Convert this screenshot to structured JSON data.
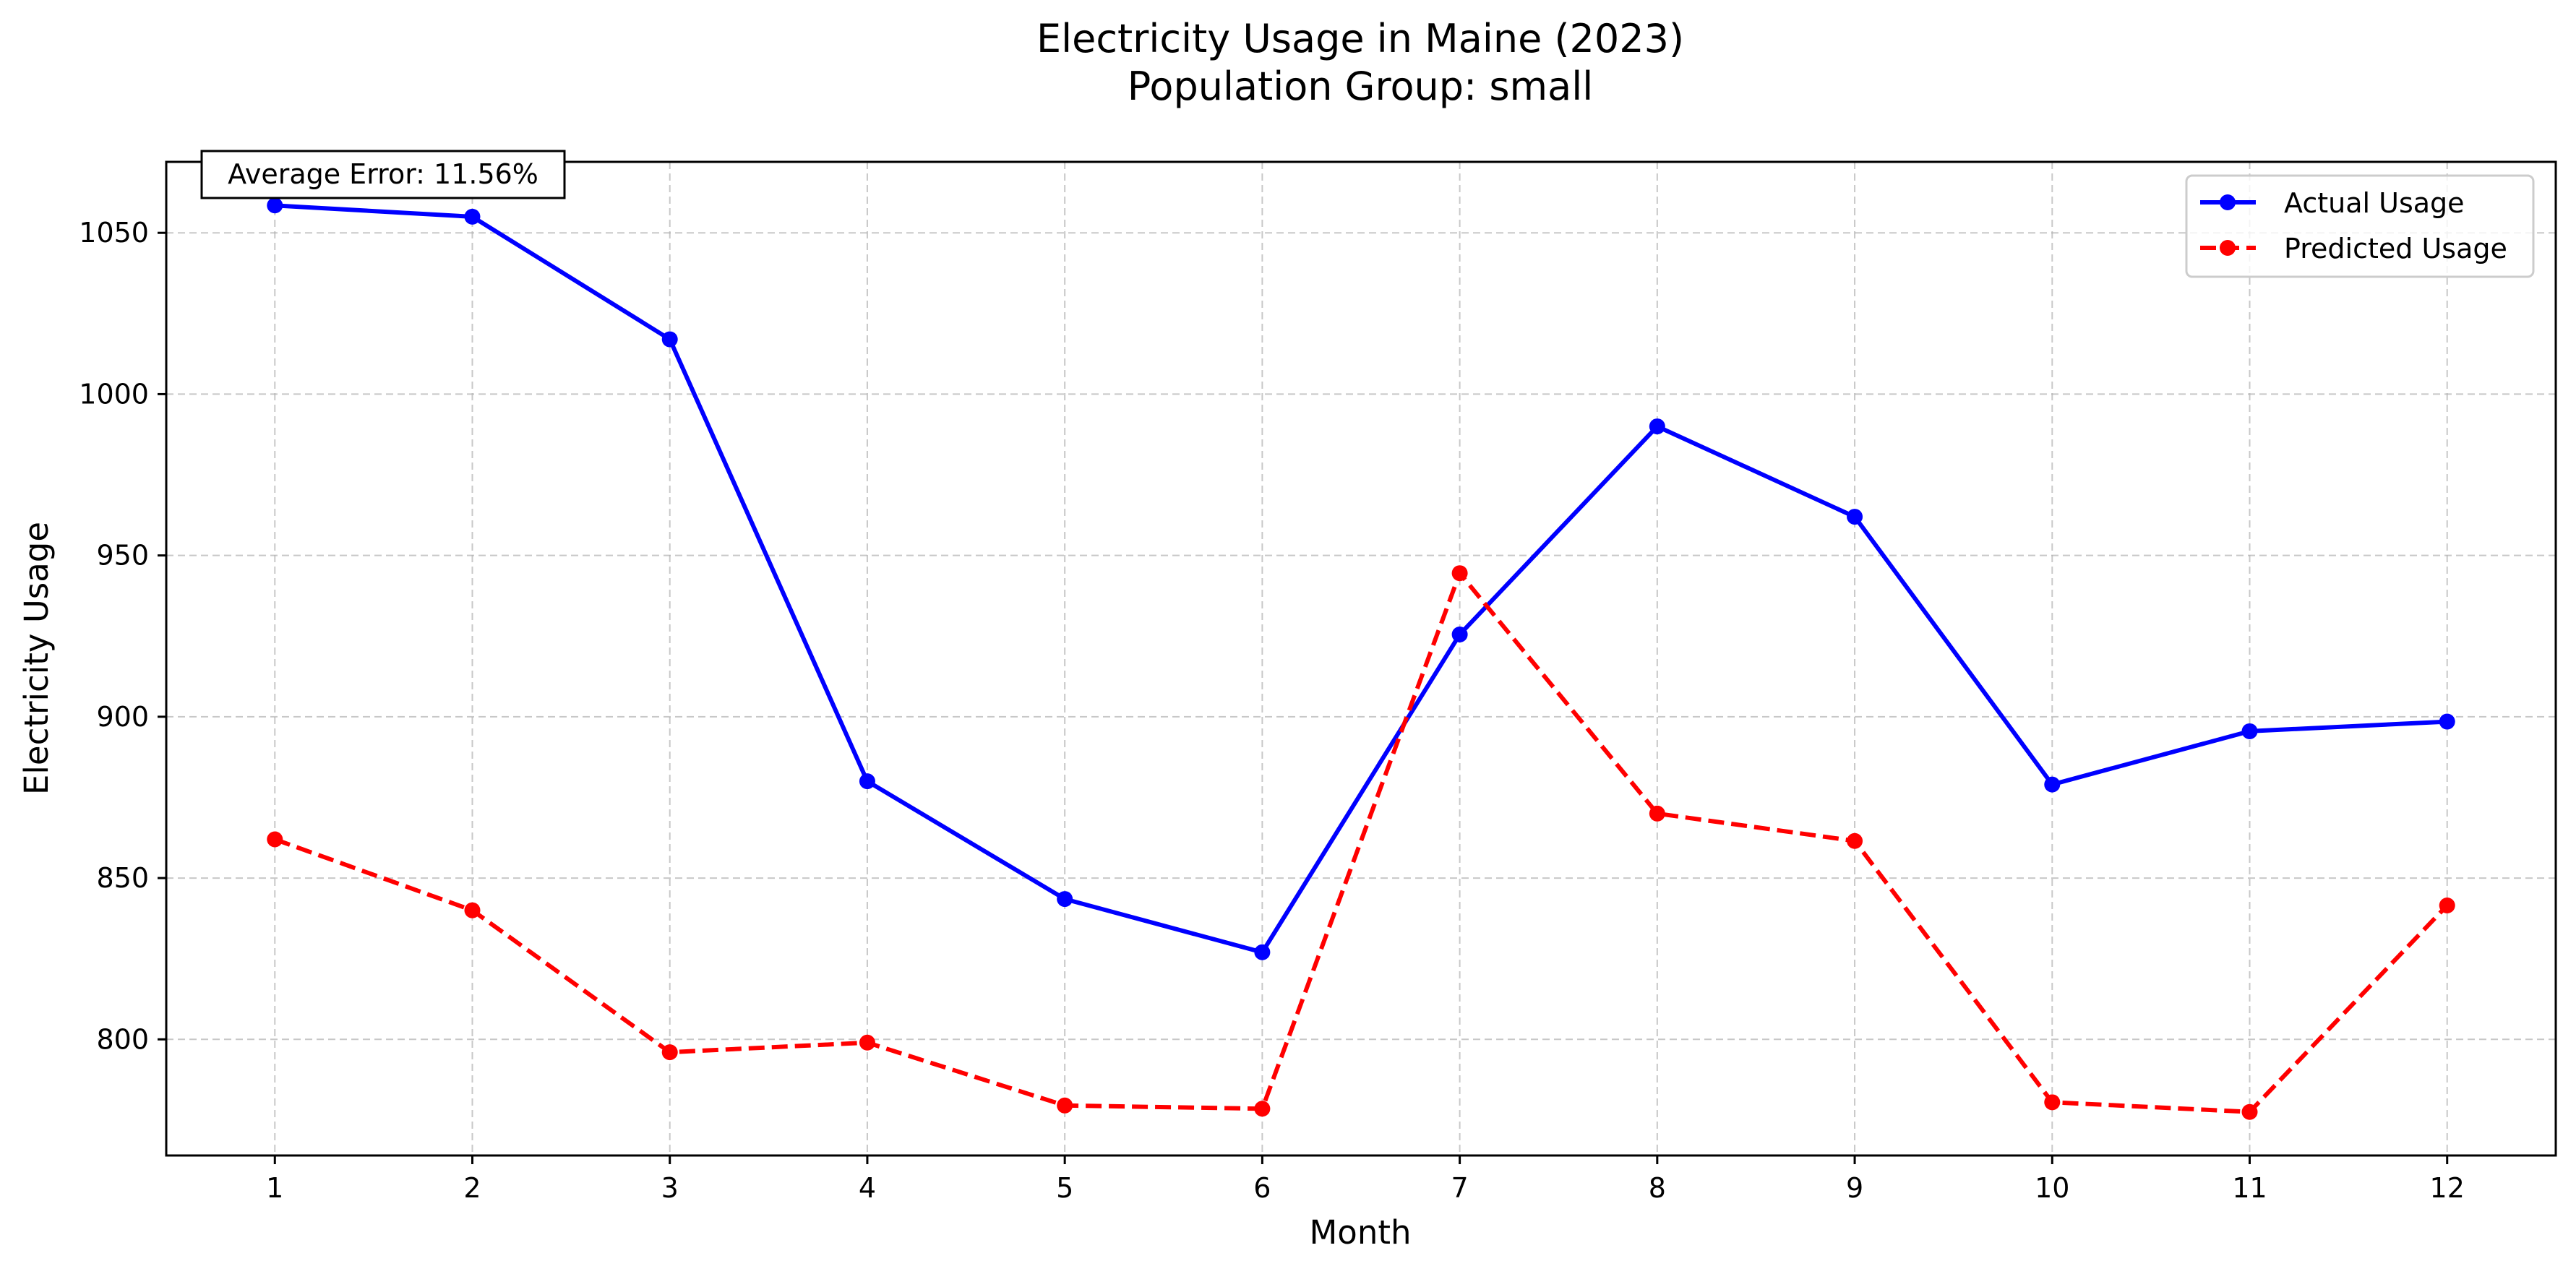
{
  "chart_data": {
    "type": "line",
    "title": "Electricity Usage in Maine (2023)",
    "subtitle": "Population Group: small",
    "xlabel": "Month",
    "ylabel": "Electricity Usage",
    "x": [
      1,
      2,
      3,
      4,
      5,
      6,
      7,
      8,
      9,
      10,
      11,
      12
    ],
    "xlim": [
      0.45,
      12.55
    ],
    "ylim": [
      764,
      1072
    ],
    "yticks": [
      800,
      850,
      900,
      950,
      1000,
      1050
    ],
    "grid": true,
    "legend_position": "top-right",
    "annotation": "Average Error: 11.56%",
    "series": [
      {
        "name": "Actual Usage",
        "color": "#0000ff",
        "style": "solid",
        "values": [
          1058.5,
          1055,
          1017,
          880,
          843.5,
          827,
          925.5,
          990,
          962,
          879,
          895.5,
          898.5
        ]
      },
      {
        "name": "Predicted Usage",
        "color": "#ff0000",
        "style": "dashed",
        "values": [
          862,
          840,
          796,
          799,
          779.5,
          778.5,
          944.5,
          870,
          861.5,
          780.5,
          777.5,
          841.5
        ]
      }
    ]
  }
}
